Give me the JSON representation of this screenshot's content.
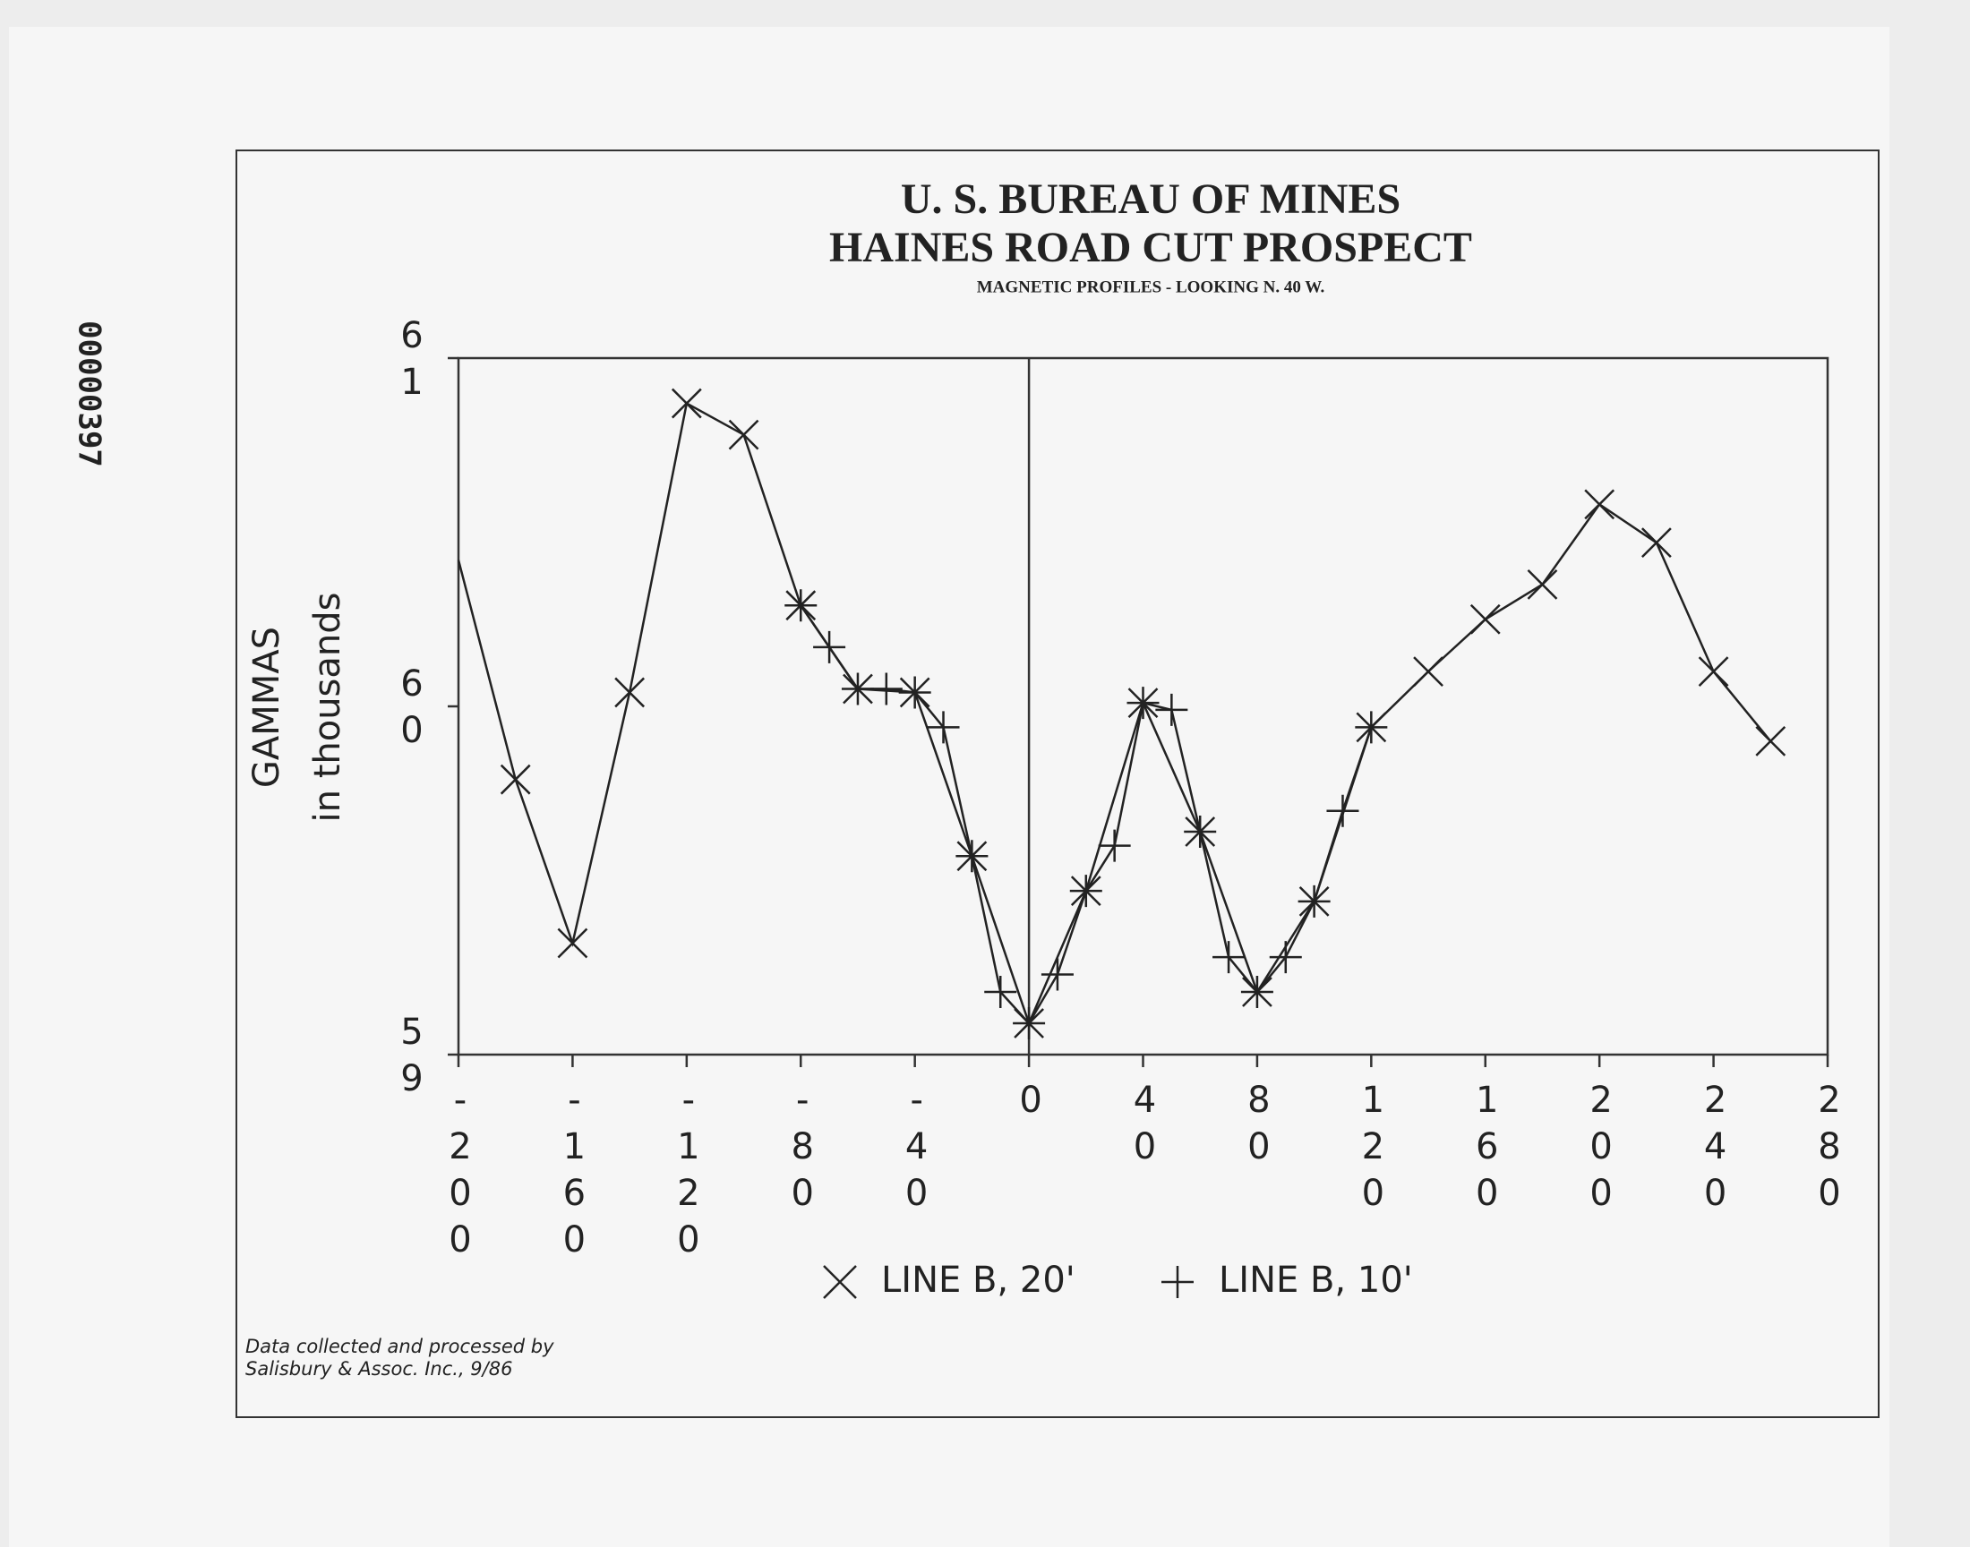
{
  "stamp": "00000397",
  "chart_data": {
    "type": "line",
    "title": [
      "U. S. BUREAU OF MINES",
      "HAINES ROAD CUT PROSPECT"
    ],
    "subtitle": "MAGNETIC PROFILES - LOOKING N. 40 W.",
    "y_label": [
      "GAMMAS",
      "in thousands"
    ],
    "note": [
      "Data collected and processed by",
      "Salisbury & Assoc. Inc., 9/86"
    ],
    "xlim": [
      -200,
      280
    ],
    "ylim": [
      59,
      61
    ],
    "xticks": [
      -200,
      -160,
      -120,
      -80,
      -40,
      0,
      40,
      80,
      120,
      160,
      200,
      240,
      280
    ],
    "yticks": [
      59,
      60,
      61
    ],
    "zero_line": true,
    "series": [
      {
        "name": "LINE B, 20'",
        "color": "#222222",
        "marker": "x",
        "x": [
          -200,
          -180,
          -160,
          -140,
          -120,
          -100,
          -80,
          -60,
          -40,
          -20,
          0,
          20,
          40,
          60,
          80,
          100,
          120,
          140,
          160,
          180,
          200,
          220,
          240,
          260
        ],
        "values": [
          60.42,
          59.79,
          59.32,
          60.04,
          60.87,
          60.78,
          60.29,
          60.05,
          60.04,
          59.57,
          59.09,
          59.47,
          60.01,
          59.64,
          59.18,
          59.44,
          59.94,
          60.1,
          60.25,
          60.35,
          60.58,
          60.47,
          60.1,
          59.9
        ]
      },
      {
        "name": "LINE B, 10'",
        "color": "#222222",
        "marker": "+",
        "x": [
          -80,
          -70,
          -60,
          -50,
          -40,
          -30,
          -20,
          -10,
          0,
          10,
          20,
          30,
          40,
          50,
          60,
          70,
          80,
          90,
          100,
          110,
          120
        ],
        "values": [
          60.29,
          60.17,
          60.05,
          60.05,
          60.04,
          59.94,
          59.57,
          59.18,
          59.09,
          59.23,
          59.47,
          59.6,
          60.01,
          59.99,
          59.64,
          59.28,
          59.18,
          59.28,
          59.44,
          59.7,
          59.94
        ]
      }
    ]
  }
}
